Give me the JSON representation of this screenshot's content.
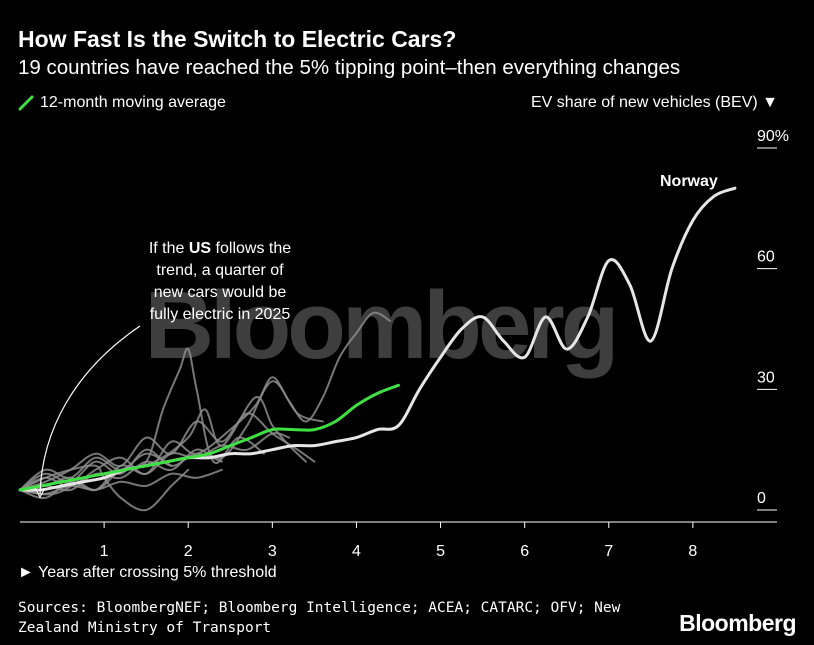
{
  "header": {
    "title": "How Fast Is the Switch to Electric Cars?",
    "subtitle": "19 countries have reached the 5% tipping point–then everything changes"
  },
  "legend": {
    "label": "12-month moving average",
    "color": "#3fe043"
  },
  "axis_titles": {
    "y": "EV share of new vehicles (BEV) ▼",
    "x": "► Years after crossing 5% threshold"
  },
  "watermark": "Bloomberg",
  "footer": {
    "source": "Sources: BloombergNEF; Bloomberg Intelligence; ACEA; CATARC; OFV; New Zealand Ministry of Transport",
    "brand": "Bloomberg"
  },
  "colors": {
    "background": "#000000",
    "norway": "#e6e6e6",
    "us": "#3fe043",
    "other_countries": "#8c8c8c",
    "text": "#ffffff"
  },
  "annotations": {
    "norway_label": "Norway",
    "us_line1_pre": "If the ",
    "us_line1_bold": "US",
    "us_line1_post": " follows the",
    "us_line2": "trend, a quarter of",
    "us_line3": "new cars would be",
    "us_line4": "fully electric in 2025"
  },
  "chart_data": {
    "type": "line",
    "title": "How Fast Is the Switch to Electric Cars?",
    "subtitle": "19 countries have reached the 5% tipping point–then everything changes",
    "xlabel": "► Years after crossing 5% threshold",
    "ylabel": "EV share of new vehicles (BEV)",
    "xlim": [
      0,
      9
    ],
    "ylim": [
      0,
      90
    ],
    "x_ticks": [
      1,
      2,
      3,
      4,
      5,
      6,
      7,
      8
    ],
    "y_ticks": [
      0,
      30,
      60,
      90
    ],
    "y_tick_labels": [
      "0",
      "30",
      "60",
      "90%"
    ],
    "grid": false,
    "series": [
      {
        "name": "Norway",
        "role": "highlight",
        "x": [
          0,
          0.25,
          0.5,
          0.75,
          1.0,
          1.25,
          1.5,
          1.75,
          2.0,
          2.25,
          2.5,
          2.75,
          3.0,
          3.25,
          3.5,
          3.75,
          4.0,
          4.25,
          4.5,
          4.75,
          5.0,
          5.25,
          5.5,
          5.75,
          6.0,
          6.25,
          6.5,
          6.75,
          7.0,
          7.25,
          7.5,
          7.75,
          8.0,
          8.25,
          8.5
        ],
        "y": [
          5,
          5,
          6,
          7,
          8,
          10,
          11,
          12,
          13,
          13,
          14,
          14,
          15,
          16,
          16,
          17,
          18,
          20,
          21,
          30,
          38,
          45,
          48,
          42,
          38,
          48,
          40,
          48,
          62,
          56,
          42,
          60,
          72,
          78,
          80
        ]
      },
      {
        "name": "US",
        "role": "12-month moving average",
        "x": [
          0,
          0.25,
          0.5,
          0.75,
          1.0,
          1.25,
          1.5,
          1.75,
          2.0,
          2.25,
          2.5,
          2.75,
          3.0,
          3.25,
          3.5,
          3.75,
          4.0,
          4.25,
          4.5
        ],
        "y": [
          5,
          6,
          7,
          8,
          9,
          10,
          11,
          12,
          13,
          14,
          16,
          18,
          20,
          20,
          20,
          22,
          26,
          29,
          31
        ]
      },
      {
        "name": "",
        "role": "other",
        "x": [
          0,
          0.3,
          0.6,
          0.9,
          1.2,
          1.5,
          1.8,
          2.1,
          2.4
        ],
        "y": [
          5,
          9,
          7,
          12,
          9,
          15,
          11,
          14,
          12
        ]
      },
      {
        "name": "",
        "role": "other",
        "x": [
          0,
          0.3,
          0.6,
          0.9,
          1.2,
          1.5,
          1.8,
          2.1,
          2.4,
          2.7,
          3.0,
          3.3,
          3.5
        ],
        "y": [
          5,
          7,
          10,
          14,
          11,
          18,
          14,
          22,
          17,
          24,
          19,
          15,
          12
        ]
      },
      {
        "name": "",
        "role": "other",
        "x": [
          0,
          0.4,
          0.8,
          1.2,
          1.6,
          2.0,
          2.2,
          2.4,
          2.8,
          3.0,
          3.2,
          3.4
        ],
        "y": [
          5,
          4,
          8,
          10,
          12,
          18,
          25,
          16,
          28,
          21,
          16,
          12
        ]
      },
      {
        "name": "",
        "role": "other",
        "x": [
          0,
          0.3,
          0.6,
          0.9,
          1.2,
          1.5,
          1.7,
          1.9,
          2.0,
          2.1,
          2.3,
          2.6,
          2.9
        ],
        "y": [
          5,
          6,
          8,
          5,
          10,
          12,
          25,
          35,
          40,
          30,
          12,
          18,
          14
        ]
      },
      {
        "name": "",
        "role": "other",
        "x": [
          0,
          0.3,
          0.6,
          0.9,
          1.2,
          1.5,
          1.8,
          2.1,
          2.5,
          2.8,
          3.0,
          3.2,
          3.4,
          3.6,
          3.8,
          4.0,
          4.2,
          4.4
        ],
        "y": [
          5,
          8,
          6,
          10,
          13,
          9,
          17,
          14,
          20,
          26,
          33,
          27,
          22,
          28,
          38,
          44,
          49,
          47
        ]
      },
      {
        "name": "",
        "role": "other",
        "x": [
          0,
          0.3,
          0.6,
          0.9,
          1.2,
          1.5,
          1.8,
          2.1,
          2.4,
          2.7,
          3.0,
          3.2
        ],
        "y": [
          5,
          3,
          7,
          5,
          11,
          9,
          14,
          13,
          16,
          15,
          19,
          18
        ]
      },
      {
        "name": "",
        "role": "other",
        "x": [
          0,
          0.3,
          0.6,
          0.9,
          1.0,
          1.2,
          1.5,
          1.8,
          2.0
        ],
        "y": [
          5,
          8,
          10,
          11,
          8,
          3,
          0,
          6,
          10
        ]
      },
      {
        "name": "",
        "role": "other",
        "x": [
          0,
          0.3,
          0.6,
          0.9,
          1.2,
          1.5,
          1.8,
          2.1,
          2.4,
          2.7,
          3.0,
          3.3,
          3.6
        ],
        "y": [
          5,
          6,
          5,
          9,
          8,
          12,
          10,
          15,
          13,
          21,
          32,
          24,
          22
        ]
      },
      {
        "name": "",
        "role": "other",
        "x": [
          0,
          0.3,
          0.6,
          0.9,
          1.2,
          1.5,
          1.8
        ],
        "y": [
          5,
          10,
          8,
          13,
          10,
          14,
          11
        ]
      },
      {
        "name": "",
        "role": "other",
        "x": [
          0,
          0.3,
          0.6,
          0.9,
          1.2,
          1.5,
          1.8,
          2.1,
          2.4
        ],
        "y": [
          5,
          4,
          6,
          5,
          7,
          6,
          9,
          8,
          10
        ]
      }
    ]
  }
}
